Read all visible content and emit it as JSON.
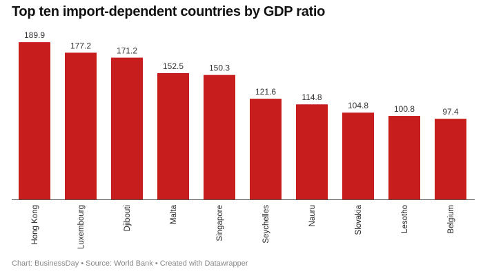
{
  "chart_data": {
    "type": "bar",
    "title": "Top ten import-dependent countries by GDP ratio",
    "categories": [
      "Hong Kong",
      "Luxembourg",
      "Djibouti",
      "Malta",
      "Singapore",
      "Seychelles",
      "Nauru",
      "Slovakia",
      "Lesotho",
      "Belgium"
    ],
    "values": [
      189.9,
      177.2,
      171.2,
      152.5,
      150.3,
      121.6,
      114.8,
      104.8,
      100.8,
      97.4
    ],
    "value_labels": [
      "189.9",
      "177.2",
      "171.2",
      "152.5",
      "150.3",
      "121.6",
      "114.8",
      "104.8",
      "100.8",
      "97.4"
    ],
    "ylim": [
      0,
      190
    ],
    "grid": false,
    "bar_color": "#c71e1d",
    "xlabel": "",
    "ylabel": ""
  },
  "footer": "Chart: BusinessDay • Source: World Bank • Created with Datawrapper"
}
